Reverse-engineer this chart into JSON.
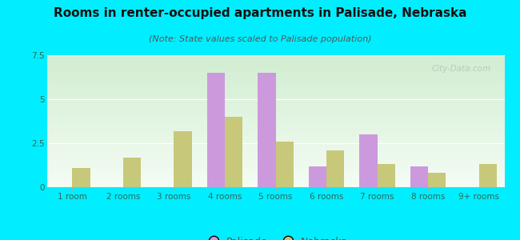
{
  "title": "Rooms in renter-occupied apartments in Palisade, Nebraska",
  "subtitle": "(Note: State values scaled to Palisade population)",
  "categories": [
    "1 room",
    "2 rooms",
    "3 rooms",
    "4 rooms",
    "5 rooms",
    "6 rooms",
    "7 rooms",
    "8 rooms",
    "9+ rooms"
  ],
  "palisade_values": [
    0,
    0,
    0,
    6.5,
    6.5,
    1.2,
    3.0,
    1.2,
    0
  ],
  "nebraska_values": [
    1.1,
    1.7,
    3.2,
    4.0,
    2.6,
    2.1,
    1.3,
    0.8,
    1.3
  ],
  "palisade_color": "#cc99dd",
  "nebraska_color": "#c8c87a",
  "background_color": "#00eeff",
  "ylim": [
    0,
    7.5
  ],
  "yticks": [
    0,
    2.5,
    5,
    7.5
  ],
  "bar_width": 0.35,
  "title_fontsize": 11,
  "subtitle_fontsize": 8,
  "tick_fontsize": 7.5,
  "legend_fontsize": 9,
  "watermark": "City-Data.com",
  "tick_color": "#336655",
  "title_color": "#111111",
  "subtitle_color": "#555555"
}
